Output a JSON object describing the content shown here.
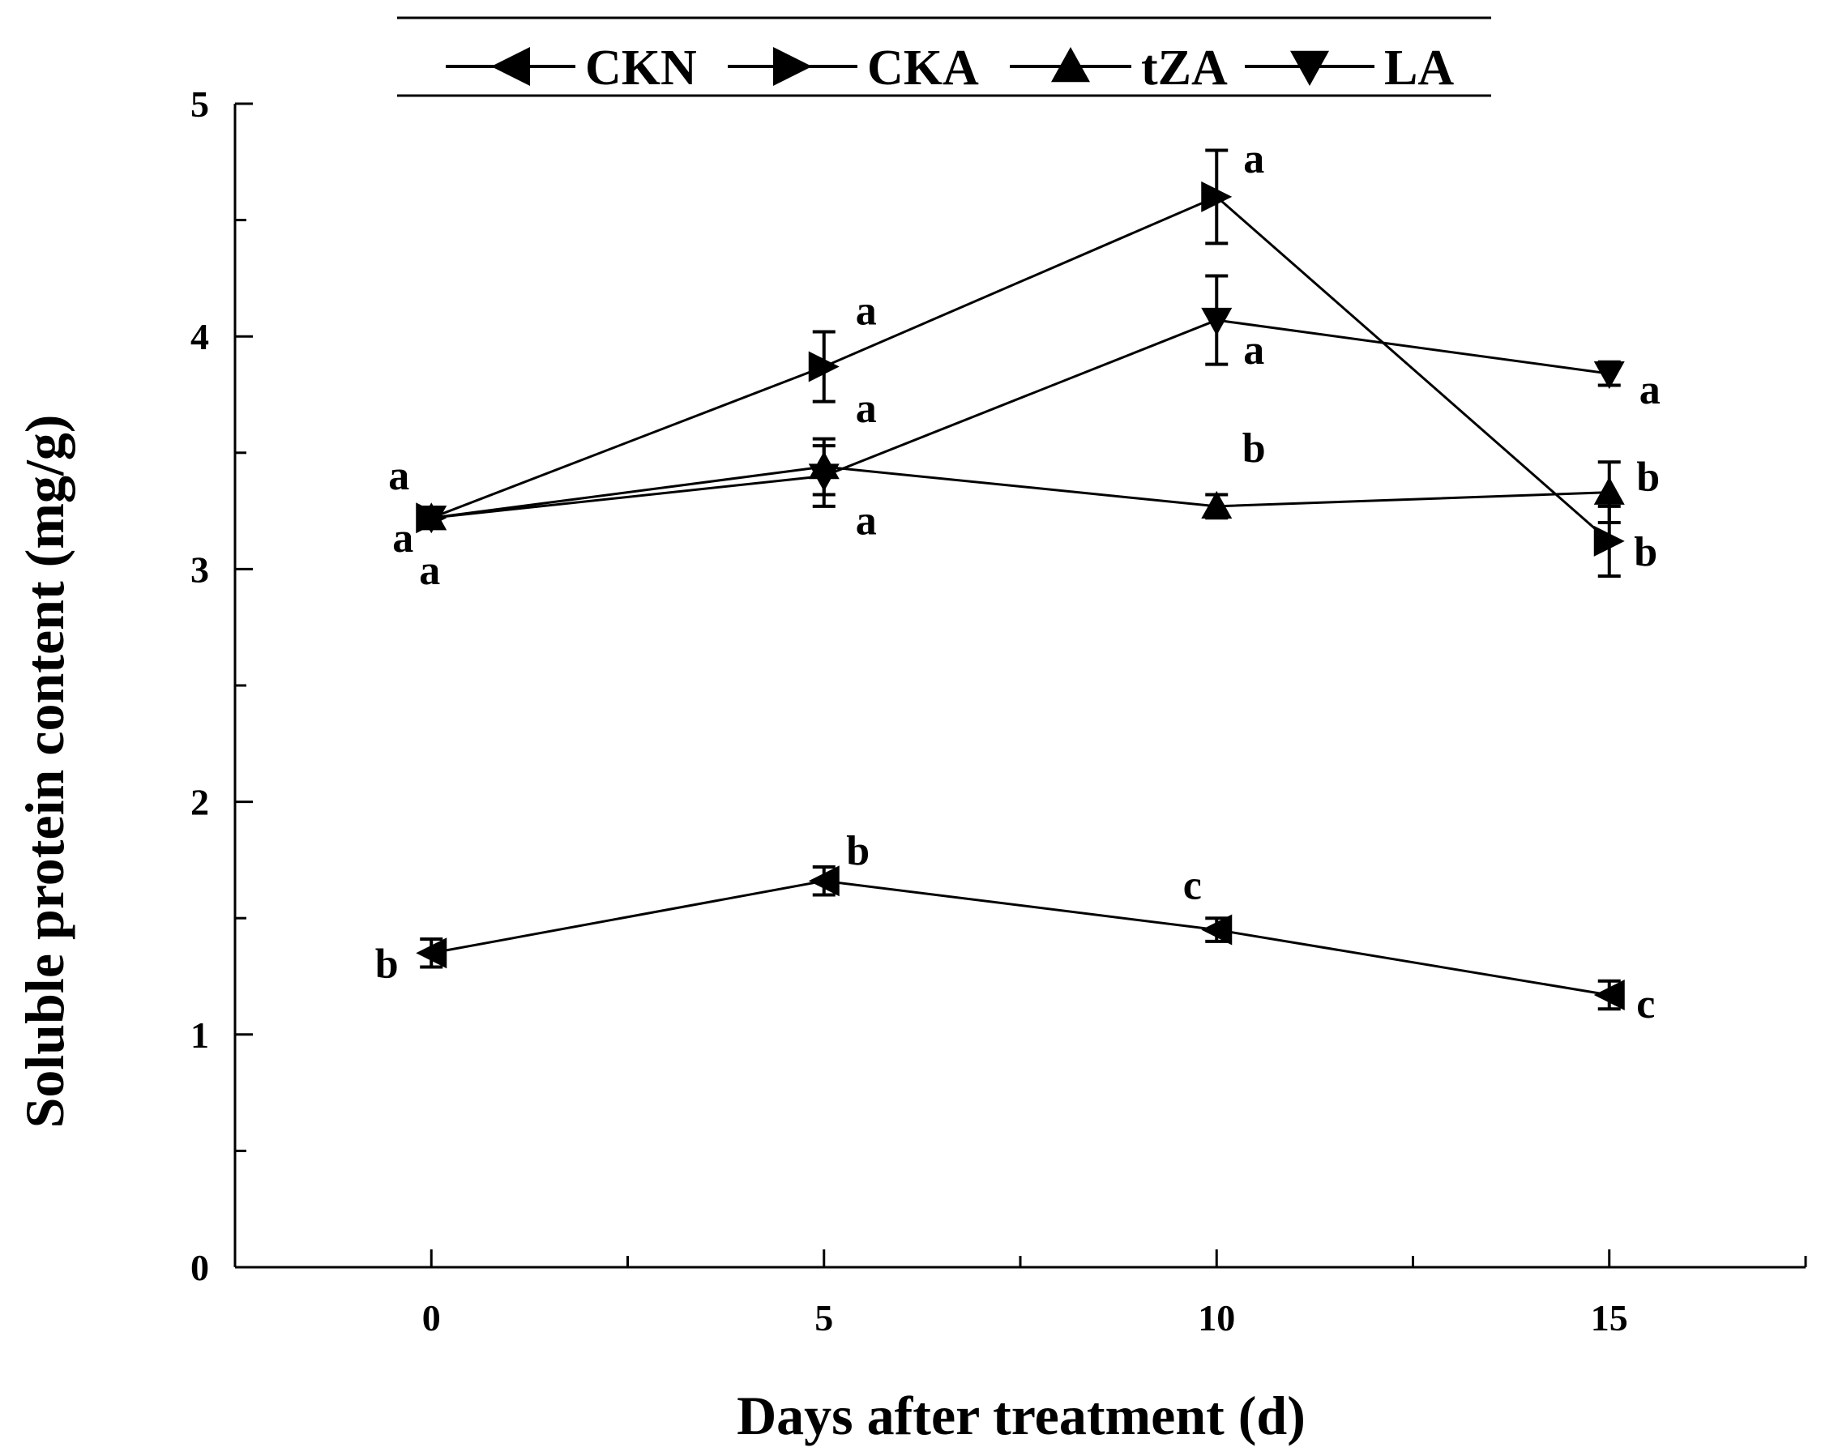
{
  "chart_data": {
    "type": "line",
    "title": "",
    "xlabel": "Days after treatment (d)",
    "ylabel": "Soluble protein content (mg/g)",
    "xlim": [
      -2.5,
      17.5
    ],
    "ylim": [
      0,
      5
    ],
    "x": [
      0,
      5,
      10,
      15
    ],
    "x_ticks": [
      0,
      5,
      10,
      15
    ],
    "x_tick_labels": [
      "0",
      "5",
      "10",
      "15"
    ],
    "y_ticks": [
      0,
      1,
      2,
      3,
      4,
      5
    ],
    "y_tick_labels": [
      "0",
      "1",
      "2",
      "3",
      "4",
      "5"
    ],
    "grid": false,
    "legend_position": "top",
    "series": [
      {
        "name": "CKN",
        "marker": "triangle-left",
        "values": [
          1.35,
          1.66,
          1.45,
          1.17
        ],
        "errors": [
          0.06,
          0.06,
          0.05,
          0.06
        ],
        "letters": [
          "b",
          "b",
          "c",
          "c"
        ]
      },
      {
        "name": "CKA",
        "marker": "triangle-right",
        "values": [
          3.22,
          3.87,
          4.6,
          3.12
        ],
        "errors": [
          0.04,
          0.15,
          0.2,
          0.15
        ],
        "letters": [
          "a",
          "a",
          "a",
          "b"
        ]
      },
      {
        "name": "tZA",
        "marker": "triangle-up",
        "values": [
          3.22,
          3.44,
          3.27,
          3.33
        ],
        "errors": [
          0.04,
          0.12,
          0.05,
          0.13
        ],
        "letters": [
          "a",
          "a",
          "b",
          "b"
        ]
      },
      {
        "name": "LA",
        "marker": "triangle-down",
        "values": [
          3.22,
          3.4,
          4.07,
          3.84
        ],
        "errors": [
          0.04,
          0.13,
          0.19,
          0.05
        ],
        "letters": [
          "a",
          "a",
          "a",
          "a"
        ]
      }
    ]
  }
}
